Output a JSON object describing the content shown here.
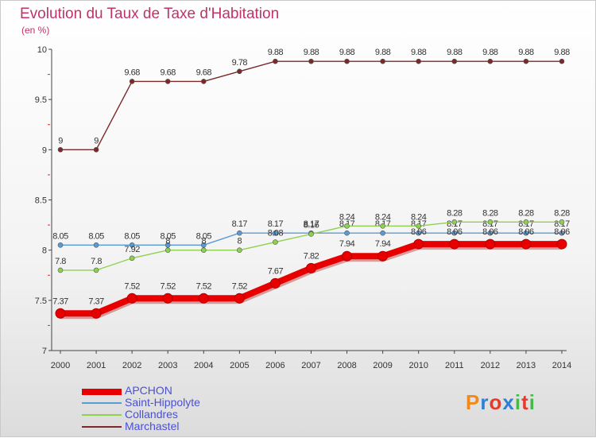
{
  "title": "Evolution du Taux de Taxe d'Habitation",
  "subtitle": "(en %)",
  "logo": {
    "text": "Proxiti",
    "colors": [
      "#f08a1c",
      "#2f7fd6",
      "#e63a2a",
      "#2f7fd6",
      "#49b84a",
      "#e63a2a",
      "#49b84a"
    ]
  },
  "chart_data": {
    "type": "line",
    "title": "Evolution du Taux de Taxe d'Habitation",
    "ylabel": "(en %)",
    "ylim": [
      7,
      10
    ],
    "yticks": [
      "7",
      "7.5",
      "8",
      "8.5",
      "9",
      "9.5",
      "10"
    ],
    "x": [
      "2000",
      "2001",
      "2002",
      "2003",
      "2004",
      "2005",
      "2006",
      "2007",
      "2008",
      "2009",
      "2010",
      "2011",
      "2012",
      "2013",
      "2014"
    ],
    "series": [
      {
        "name": "Marchastel",
        "color": "#7a2a2a",
        "values": [
          9,
          9,
          9.68,
          9.68,
          9.68,
          9.78,
          9.88,
          9.88,
          9.88,
          9.88,
          9.88,
          9.88,
          9.88,
          9.88,
          9.88
        ],
        "labels": [
          "9",
          "9",
          "9.68",
          "9.68",
          "9.68",
          "9.78",
          "9.88",
          "9.88",
          "9.88",
          "9.88",
          "9.88",
          "9.88",
          "9.88",
          "9.88",
          "9.88"
        ]
      },
      {
        "name": "Saint-Hippolyte",
        "color": "#5b9bd5",
        "values": [
          8.05,
          8.05,
          8.05,
          8.05,
          8.05,
          8.17,
          8.17,
          8.17,
          8.17,
          8.17,
          8.17,
          8.17,
          8.17,
          8.17,
          8.17
        ],
        "labels": [
          "8.05",
          "8.05",
          "8.05",
          "8.05",
          "8.05",
          "8.17",
          "8.17",
          "8.17",
          "8.17",
          "8.17",
          "8.17",
          "8.17",
          "8.17",
          "8.17",
          "8.17"
        ]
      },
      {
        "name": "Collandres",
        "color": "#8fd14f",
        "values": [
          7.8,
          7.8,
          7.92,
          8,
          8,
          8,
          8.08,
          8.16,
          8.24,
          8.24,
          8.24,
          8.28,
          8.28,
          8.28,
          8.28
        ],
        "labels": [
          "7.8",
          "7.8",
          "7.92",
          "8",
          "8",
          "8",
          "8.08",
          "8.16",
          "8.24",
          "8.24",
          "8.24",
          "8.28",
          "8.28",
          "8.28",
          "8.28"
        ]
      },
      {
        "name": "APCHON",
        "color": "#e80000",
        "values": [
          7.37,
          7.37,
          7.52,
          7.52,
          7.52,
          7.52,
          7.67,
          7.82,
          7.94,
          7.94,
          8.06,
          8.06,
          8.06,
          8.06,
          8.06
        ],
        "labels": [
          "7.37",
          "7.37",
          "7.52",
          "7.52",
          "7.52",
          "7.52",
          "7.67",
          "7.82",
          "7.94",
          "7.94",
          "8.06",
          "8.06",
          "8.06",
          "8.06",
          "8.06"
        ]
      }
    ],
    "legend": [
      "APCHON",
      "Saint-Hippolyte",
      "Collandres",
      "Marchastel"
    ],
    "legend_position": "bottom-left"
  }
}
